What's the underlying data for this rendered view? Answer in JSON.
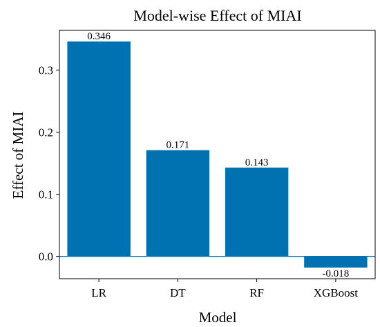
{
  "chart_data": {
    "type": "bar",
    "title": "Model-wise Effect of MIAI",
    "xlabel": "Model",
    "ylabel": "Effect of MIAI",
    "categories": [
      "LR",
      "DT",
      "RF",
      "XGBoost"
    ],
    "values": [
      0.346,
      0.171,
      0.143,
      -0.018
    ],
    "data_labels": [
      "0.346",
      "0.171",
      "0.143",
      "-0.018"
    ],
    "ylim": [
      -0.036,
      0.364
    ],
    "yticks": [
      0.0,
      0.1,
      0.2,
      0.3
    ],
    "ytick_labels": [
      "0.0",
      "0.1",
      "0.2",
      "0.3"
    ],
    "bar_color": "#0072b2",
    "zero_line_color": "#0072b2",
    "grid": false,
    "legend": "none"
  }
}
